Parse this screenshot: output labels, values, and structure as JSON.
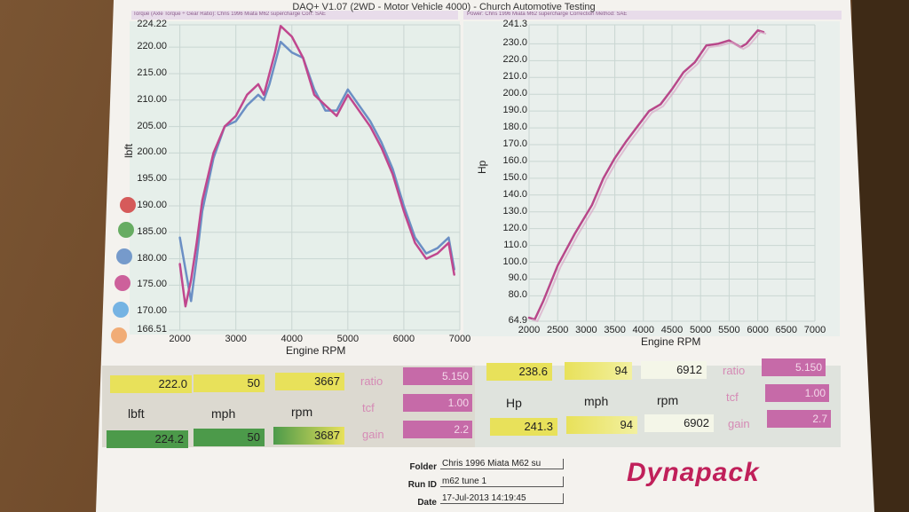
{
  "header": {
    "title": "DAQ+ V1.07 (2WD - Motor Vehicle 4000) - Church Automotive Testing",
    "left_panel_caption": "Torque (Axle Torque ÷ Gear Ratio): Chris 1996 Miata M62 supercharge    Corr: SAE",
    "right_panel_caption": "Power: Chris 1996 Miata M62 supercharge      Correction Method: SAE"
  },
  "colors": {
    "paper": "#f5f3f0",
    "plot_bg": "#e9f1ee",
    "grid": "#c9d6d2",
    "run1_torque": "#6b8fc4",
    "run2_torque": "#c0478e",
    "power_line": "#b8488a",
    "power_ghost": "#d9aac8",
    "yellow_cell": "#e8e15a",
    "green_cell": "#4c9a4a",
    "pink_cell": "#c66aa8",
    "logo": "#c0205a"
  },
  "legend_dots": [
    "#d04040",
    "#4fa04a",
    "#5f8bc4",
    "#c5468c",
    "#5fa8e0",
    "#f0a060"
  ],
  "chart_data": [
    {
      "type": "line",
      "title": "",
      "xlabel": "Engine RPM",
      "ylabel": "lbft",
      "xlim": [
        1800,
        7000
      ],
      "ylim": [
        166.51,
        224.22
      ],
      "x_ticks": [
        "2000",
        "3000",
        "4000",
        "5000",
        "6000",
        "7000"
      ],
      "y_ticks": [
        "224.22",
        "220.00",
        "215.00",
        "210.00",
        "205.00",
        "200.00",
        "195.00",
        "190.00",
        "185.00",
        "180.00",
        "175.00",
        "170.00",
        "166.51"
      ],
      "grid": true,
      "x": [
        2000,
        2100,
        2200,
        2300,
        2400,
        2600,
        2800,
        3000,
        3200,
        3400,
        3500,
        3600,
        3700,
        3800,
        4000,
        4200,
        4400,
        4600,
        4800,
        5000,
        5200,
        5400,
        5600,
        5800,
        6000,
        6200,
        6400,
        6600,
        6800,
        6900
      ],
      "series": [
        {
          "name": "",
          "values": [
            184,
            178,
            172,
            180,
            189,
            199,
            205,
            206,
            209,
            211,
            210,
            213,
            217,
            221,
            219,
            218,
            212,
            208,
            208,
            212,
            209,
            206,
            202,
            197,
            190,
            184,
            181,
            182,
            184,
            178
          ]
        },
        {
          "name": "",
          "values": [
            179,
            171,
            176,
            183,
            191,
            200,
            205,
            207,
            211,
            213,
            211,
            215,
            219,
            224,
            222,
            218,
            211,
            209,
            207,
            211,
            208,
            205,
            201,
            196,
            189,
            183,
            180,
            181,
            183,
            177
          ]
        }
      ]
    },
    {
      "type": "line",
      "title": "",
      "xlabel": "Engine RPM",
      "ylabel": "Hp",
      "xlim": [
        2000,
        7000
      ],
      "ylim": [
        64.9,
        241.3
      ],
      "x_ticks": [
        "2000",
        "2500",
        "3000",
        "3500",
        "4000",
        "4500",
        "5000",
        "5500",
        "6000",
        "6500",
        "7000"
      ],
      "y_ticks": [
        "241.3",
        "230.0",
        "220.0",
        "210.0",
        "200.0",
        "190.0",
        "180.0",
        "170.0",
        "160.0",
        "150.0",
        "140.0",
        "130.0",
        "120.0",
        "110.0",
        "100.0",
        "90.0",
        "80.0",
        "64.9"
      ],
      "grid": true,
      "x": [
        2000,
        2100,
        2250,
        2500,
        2800,
        3100,
        3300,
        3500,
        3700,
        3900,
        4100,
        4300,
        4500,
        4700,
        4900,
        5100,
        5300,
        5500,
        5700,
        5800,
        6000,
        6100
      ],
      "series": [
        {
          "name": "",
          "values": [
            67,
            66,
            77,
            98,
            117,
            134,
            150,
            162,
            172,
            181,
            190,
            194,
            203,
            213,
            219,
            229,
            230,
            232,
            228,
            230,
            238,
            237
          ]
        }
      ]
    }
  ],
  "readout": {
    "torque": {
      "run1": [
        "222.0",
        "50",
        "3667"
      ],
      "headers": [
        "lbft",
        "mph",
        "rpm"
      ],
      "run2": [
        "224.2",
        "50",
        "3687"
      ],
      "params": [
        {
          "label": "ratio",
          "value": "5.150"
        },
        {
          "label": "tcf",
          "value": "1.00"
        },
        {
          "label": "gain",
          "value": "2.2"
        }
      ]
    },
    "power": {
      "run1": [
        "238.6",
        "94",
        "6912"
      ],
      "headers": [
        "Hp",
        "mph",
        "rpm"
      ],
      "run2": [
        "241.3",
        "94",
        "6902"
      ],
      "params": [
        {
          "label": "ratio",
          "value": "5.150"
        },
        {
          "label": "tcf",
          "value": "1.00"
        },
        {
          "label": "gain",
          "value": "2.7"
        }
      ]
    }
  },
  "footer": {
    "folder_label": "Folder",
    "folder_value": "Chris 1996 Miata M62 su",
    "runid_label": "Run ID",
    "runid_value": "m62 tune 1",
    "date_label": "Date",
    "date_value": "17-Jul-2013 14:19:45",
    "logo": "Dynapack"
  }
}
